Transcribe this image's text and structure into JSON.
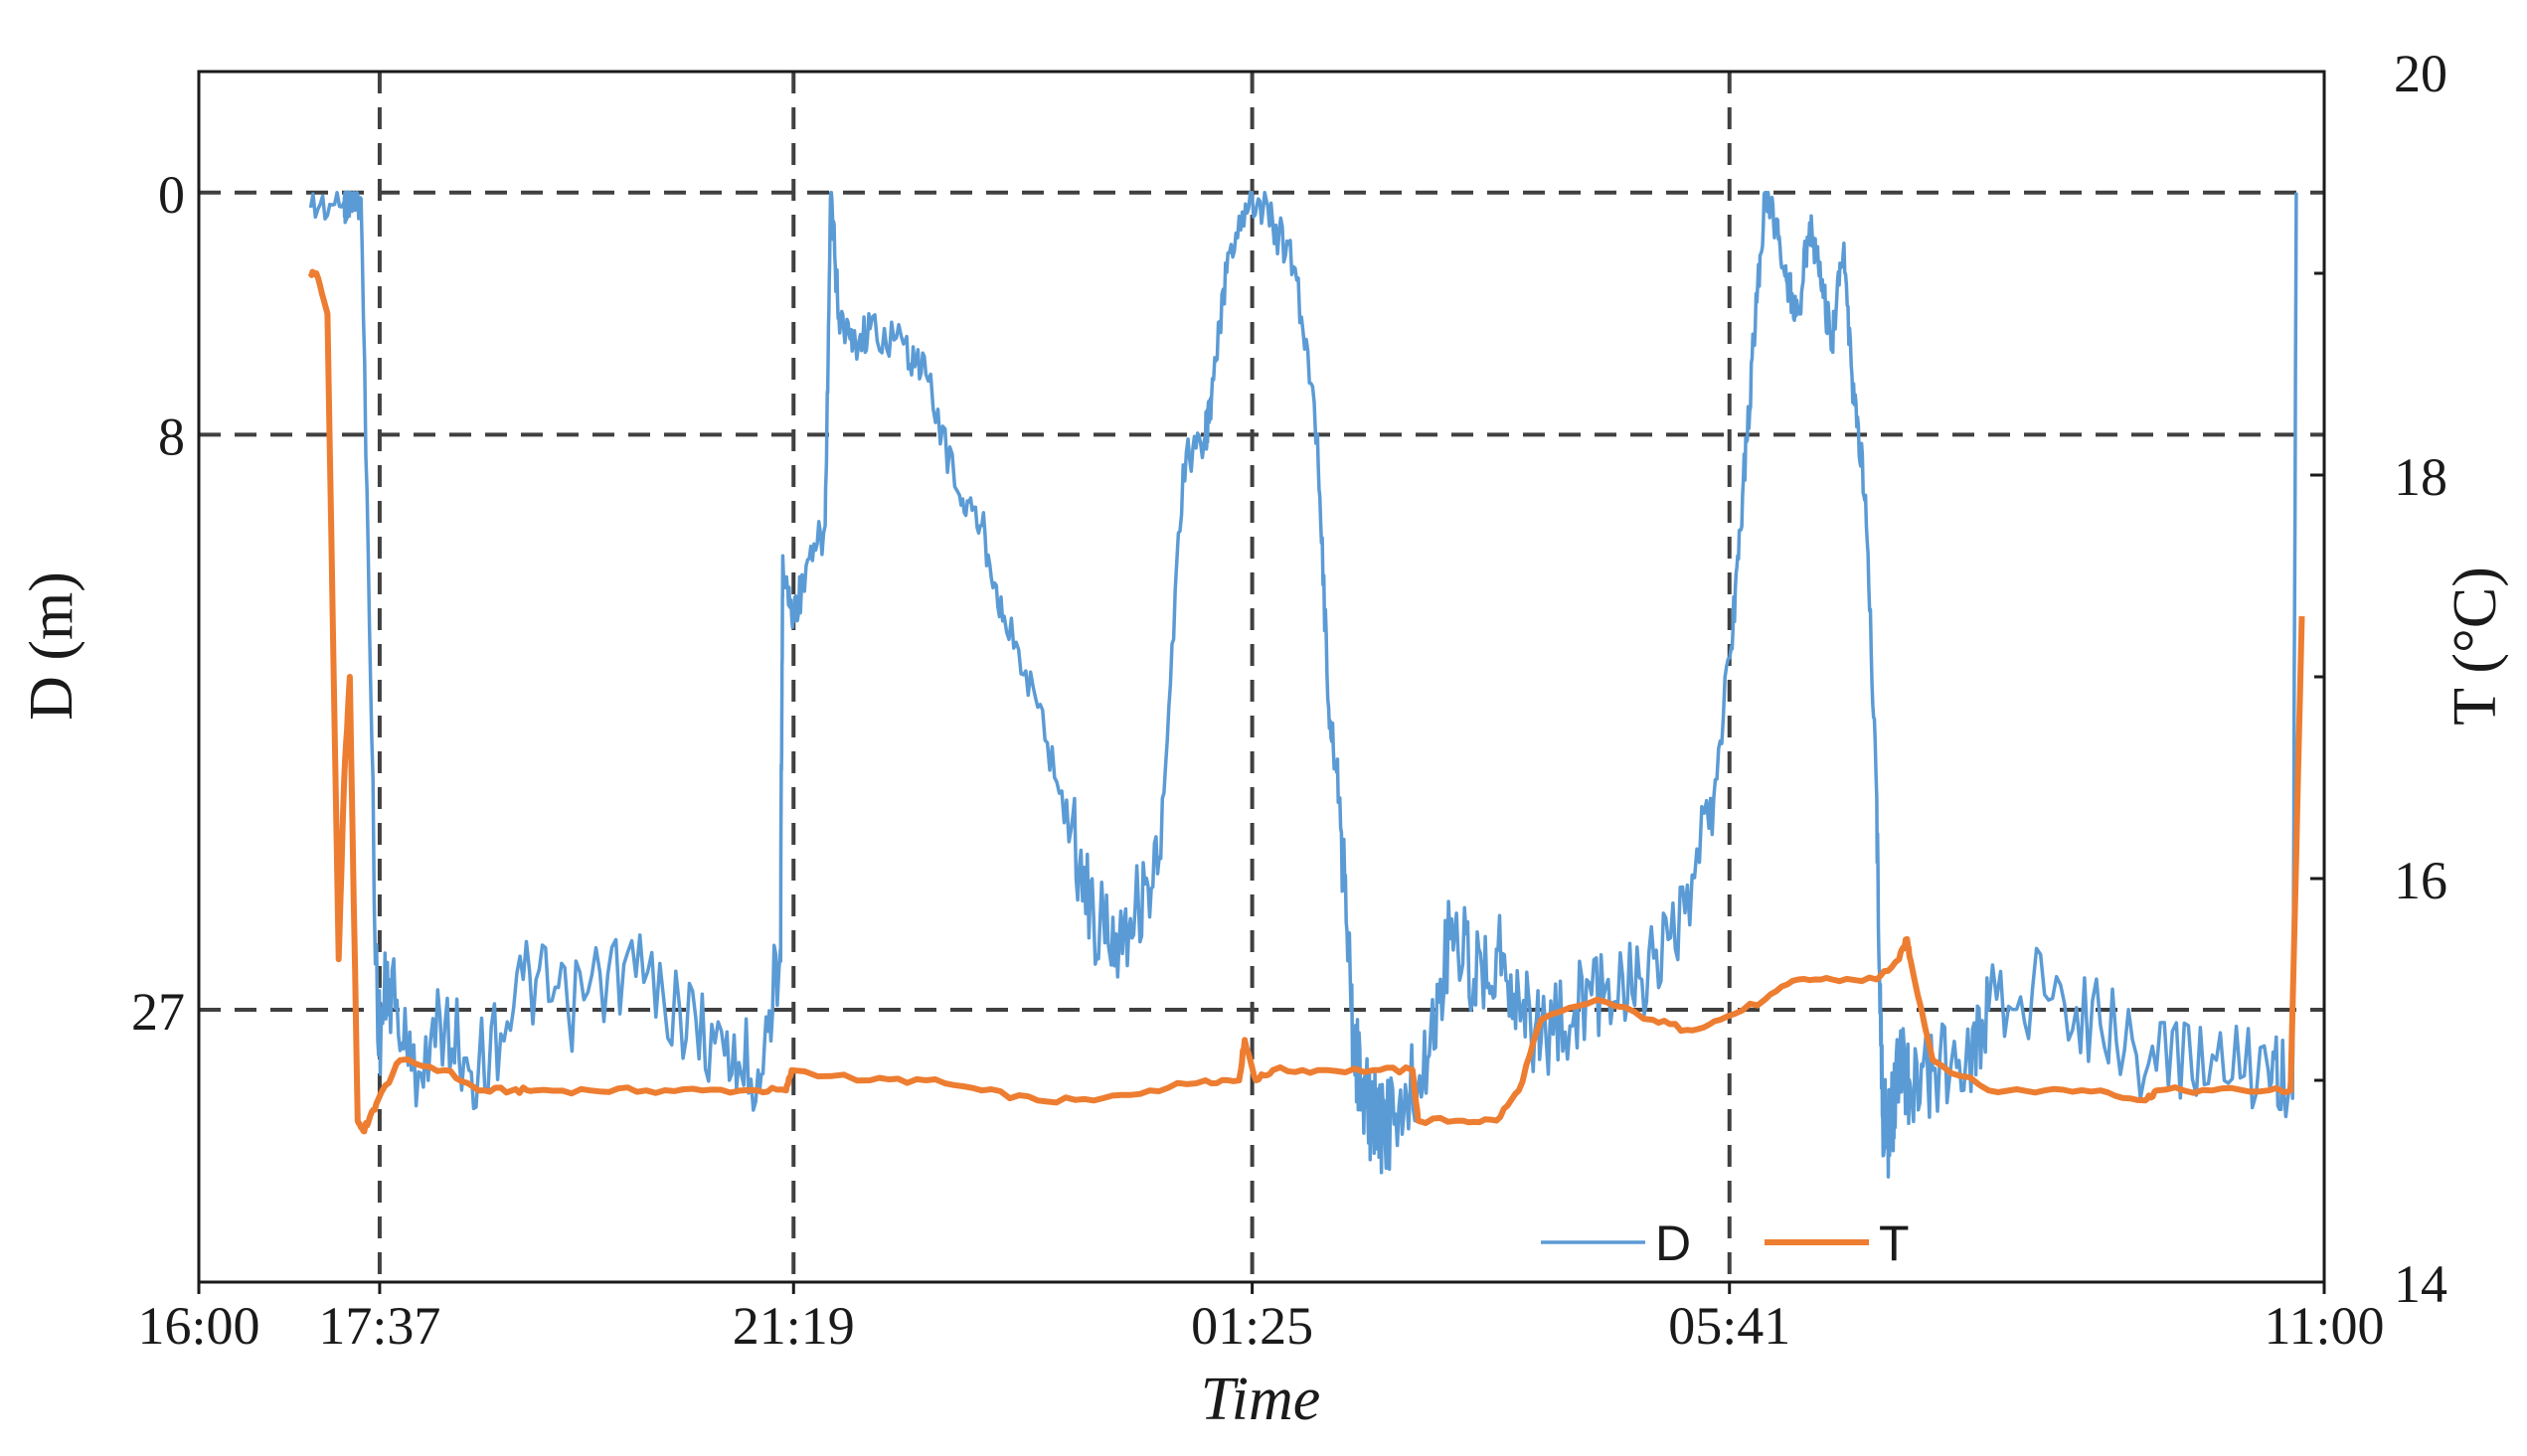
{
  "chart_data": {
    "type": "line",
    "title": "",
    "xlabel": "Time",
    "ylabel_left": "D (m)",
    "ylabel_right": "T (°C)",
    "x_ticks": [
      "16:00",
      "17:37",
      "21:19",
      "01:25",
      "05:41",
      "11:00"
    ],
    "x_range_hours": [
      0,
      19
    ],
    "left_axis": {
      "reversed": true,
      "ticks": [
        0,
        8,
        27
      ],
      "range": [
        -4,
        36
      ]
    },
    "right_axis": {
      "ticks": [
        14,
        16,
        18,
        20
      ],
      "range": [
        14,
        20
      ]
    },
    "vertical_guides": [
      "17:37",
      "21:19",
      "01:25",
      "05:41"
    ],
    "horizontal_guides_depth": [
      0,
      8,
      27
    ],
    "grid": false,
    "legend": {
      "position": "bottom-right",
      "entries": [
        "D",
        "T"
      ]
    },
    "colors": {
      "D": "#5B9BD5",
      "T": "#ED7D31",
      "guides": "#404040",
      "axis": "#1a1a1a"
    },
    "series": [
      {
        "name": "D",
        "axis": "left",
        "x_hours": [
          1.0,
          1.3,
          1.32,
          1.35,
          1.45,
          1.6,
          1.7,
          1.9,
          2.2,
          2.5,
          2.9,
          3.3,
          3.8,
          4.3,
          4.7,
          5.0,
          5.2,
          5.22,
          5.3,
          5.4,
          5.6,
          5.65,
          5.72,
          5.85,
          6.0,
          6.3,
          6.5,
          6.8,
          7.0,
          7.2,
          7.5,
          7.8,
          8.0,
          8.2,
          8.4,
          8.6,
          8.8,
          9.0,
          9.05,
          9.2,
          9.4,
          9.6,
          9.8,
          10.0,
          10.1,
          10.2,
          10.3,
          10.4,
          10.5,
          10.6,
          10.8,
          11.0,
          11.2,
          11.4,
          11.6,
          11.8,
          12.0,
          12.3,
          12.6,
          12.9,
          13.2,
          13.5,
          13.7,
          13.8,
          13.9,
          14.0,
          14.1,
          14.2,
          14.3,
          14.4,
          14.5,
          14.6,
          14.7,
          14.8,
          14.9,
          15.0,
          15.05,
          15.1,
          15.15,
          15.2,
          15.3,
          15.5,
          15.8,
          16.0,
          16.5,
          17.0,
          17.5,
          18.0,
          18.5,
          18.7,
          18.72,
          18.75
        ],
        "values": [
          0.5,
          0.3,
          0.3,
          0.1,
          0.2,
          28,
          26,
          29,
          27.5,
          29,
          26,
          27,
          25.5,
          27,
          28.5,
          29,
          25,
          12,
          14,
          13,
          11,
          0,
          4,
          5,
          4.5,
          5,
          6,
          10,
          11,
          14,
          17,
          21,
          24,
          24.5,
          23.5,
          22,
          9,
          8,
          7,
          2,
          0,
          1,
          2.5,
          8,
          17,
          20,
          27,
          30,
          30.5,
          31,
          30,
          28.5,
          24,
          26,
          25,
          26.5,
          28,
          27,
          26,
          26,
          25,
          21,
          15,
          10,
          5,
          0,
          1,
          3,
          4,
          1,
          3,
          5,
          2,
          7,
          10,
          20,
          30.5,
          31,
          30.5,
          29,
          29.5,
          29,
          28.5,
          27,
          26.5,
          27.5,
          29,
          28.5,
          29,
          29,
          28.5,
          0
        ]
      },
      {
        "name": "T",
        "axis": "right",
        "x_hours": [
          1.0,
          1.05,
          1.15,
          1.25,
          1.3,
          1.35,
          1.42,
          1.47,
          1.52,
          1.6,
          1.8,
          2.2,
          2.5,
          2.8,
          3.0,
          3.5,
          4.0,
          4.5,
          5.0,
          5.25,
          5.3,
          6.0,
          6.5,
          7.0,
          7.5,
          8.0,
          8.5,
          9.0,
          9.3,
          9.35,
          9.45,
          9.6,
          10.0,
          10.5,
          10.85,
          10.9,
          11.3,
          11.6,
          11.8,
          12.0,
          12.5,
          13.0,
          13.3,
          13.6,
          14.0,
          14.3,
          14.6,
          15.0,
          15.2,
          15.27,
          15.3,
          15.5,
          16.0,
          16.5,
          17.0,
          17.4,
          17.5,
          18.0,
          18.5,
          18.7,
          18.8
        ],
        "values": [
          19.0,
          19.0,
          18.8,
          15.6,
          16.5,
          17.0,
          14.8,
          14.75,
          14.8,
          14.9,
          15.1,
          15.05,
          14.95,
          14.95,
          14.95,
          14.95,
          14.95,
          14.95,
          14.95,
          14.95,
          15.05,
          15.0,
          15.0,
          14.95,
          14.9,
          14.9,
          14.95,
          15.0,
          15.0,
          15.2,
          15.0,
          15.05,
          15.05,
          15.05,
          15.05,
          14.8,
          14.8,
          14.8,
          14.95,
          15.3,
          15.4,
          15.3,
          15.25,
          15.3,
          15.4,
          15.5,
          15.5,
          15.5,
          15.6,
          15.7,
          15.6,
          15.1,
          14.95,
          14.95,
          14.95,
          14.9,
          14.95,
          14.95,
          14.95,
          14.95,
          17.3
        ]
      }
    ]
  }
}
